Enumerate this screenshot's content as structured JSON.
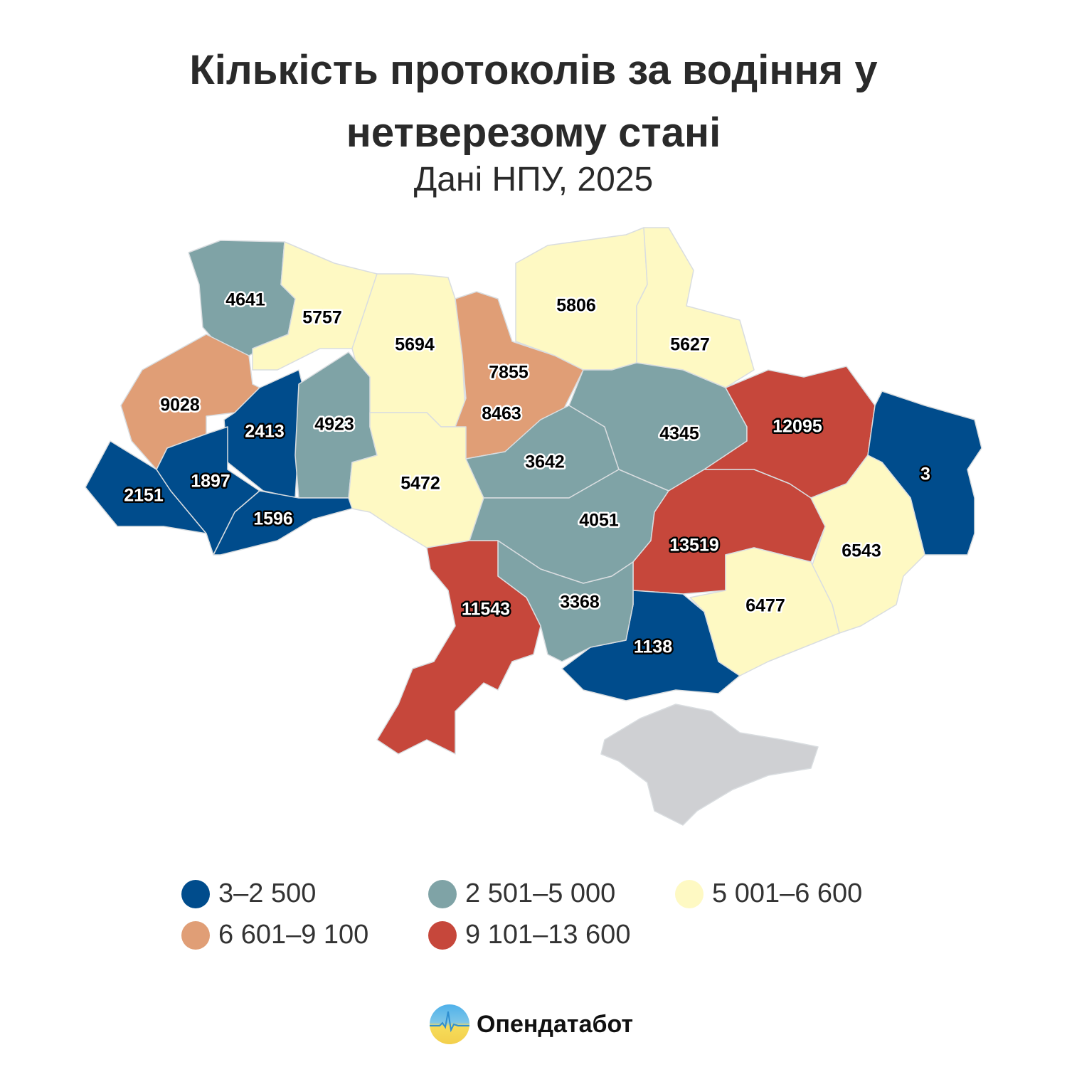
{
  "header": {
    "title_line1": "Кількість протоколів за водіння у",
    "title_line2": "нетверезому стані",
    "subtitle": "Дані НПУ, 2025"
  },
  "colors": {
    "bin1": "#004c8c",
    "bin2": "#7fa3a6",
    "bin3": "#fef9c3",
    "bin4": "#e09e76",
    "bin5": "#c6473b",
    "no_data": "#cfd0d3"
  },
  "regions": [
    {
      "value": "4641",
      "bin": 2
    },
    {
      "value": "5757",
      "bin": 3
    },
    {
      "value": "5694",
      "bin": 3
    },
    {
      "value": "7855",
      "bin": 4
    },
    {
      "value": "8463",
      "bin": 4
    },
    {
      "value": "5806",
      "bin": 3
    },
    {
      "value": "5627",
      "bin": 3
    },
    {
      "value": "9028",
      "bin": 4
    },
    {
      "value": "2413",
      "bin": 1
    },
    {
      "value": "4923",
      "bin": 2
    },
    {
      "value": "2151",
      "bin": 1
    },
    {
      "value": "1897",
      "bin": 1
    },
    {
      "value": "1596",
      "bin": 1
    },
    {
      "value": "5472",
      "bin": 3
    },
    {
      "value": "3642",
      "bin": 2
    },
    {
      "value": "4345",
      "bin": 2
    },
    {
      "value": "12095",
      "bin": 5
    },
    {
      "value": "3",
      "bin": 1
    },
    {
      "value": "4051",
      "bin": 2
    },
    {
      "value": "13519",
      "bin": 5
    },
    {
      "value": "6543",
      "bin": 3
    },
    {
      "value": "6477",
      "bin": 3
    },
    {
      "value": "1138",
      "bin": 1
    },
    {
      "value": "3368",
      "bin": 2
    },
    {
      "value": "11543",
      "bin": 5
    }
  ],
  "legend": [
    {
      "label": "3–2 500"
    },
    {
      "label": "2 501–5 000"
    },
    {
      "label": "5 001–6 600"
    },
    {
      "label": "6 601–9 100"
    },
    {
      "label": "9 101–13 600"
    }
  ],
  "footer": {
    "brand": "Опендатабот"
  }
}
